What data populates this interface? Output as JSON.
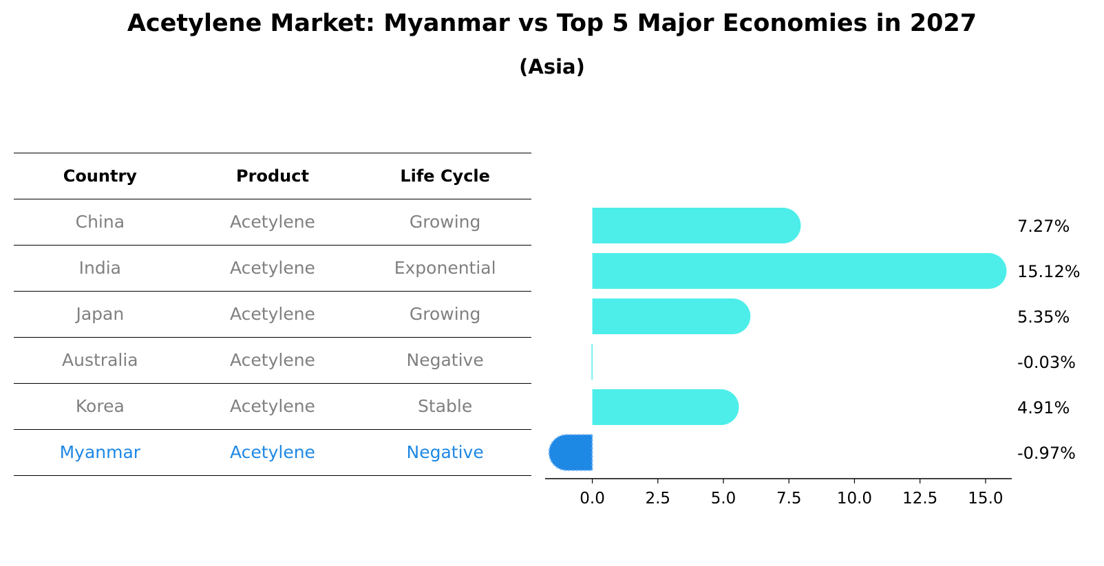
{
  "title": "Acetylene Market: Myanmar vs Top 5 Major Economies in 2027",
  "subtitle": "(Asia)",
  "table": {
    "headers": [
      "Country",
      "Product",
      "Life Cycle"
    ],
    "rows": [
      {
        "country": "China",
        "product": "Acetylene",
        "life_cycle": "Growing"
      },
      {
        "country": "India",
        "product": "Acetylene",
        "life_cycle": "Exponential"
      },
      {
        "country": "Japan",
        "product": "Acetylene",
        "life_cycle": "Growing"
      },
      {
        "country": "Australia",
        "product": "Acetylene",
        "life_cycle": "Negative"
      },
      {
        "country": "Korea",
        "product": "Acetylene",
        "life_cycle": "Stable"
      },
      {
        "country": "Myanmar",
        "product": "Acetylene",
        "life_cycle": "Negative"
      }
    ]
  },
  "colors": {
    "bar": "#4deeea",
    "highlight": "#1e88e5",
    "muted_text": "#808080"
  },
  "chart_data": {
    "type": "bar",
    "orientation": "horizontal",
    "categories": [
      "China",
      "India",
      "Japan",
      "Australia",
      "Korea",
      "Myanmar"
    ],
    "values": [
      7.27,
      15.12,
      5.35,
      -0.03,
      4.91,
      -0.97
    ],
    "value_labels": [
      "7.27%",
      "15.12%",
      "5.35%",
      "-0.03%",
      "4.91%",
      "-0.97%"
    ],
    "highlight": "Myanmar",
    "xlim": [
      -1.8,
      16.0
    ],
    "xticks": [
      0.0,
      2.5,
      5.0,
      7.5,
      10.0,
      12.5,
      15.0
    ],
    "xtick_labels": [
      "0.0",
      "2.5",
      "5.0",
      "7.5",
      "10.0",
      "12.5",
      "15.0"
    ],
    "xlabel": "",
    "ylabel": "",
    "grid": false
  }
}
